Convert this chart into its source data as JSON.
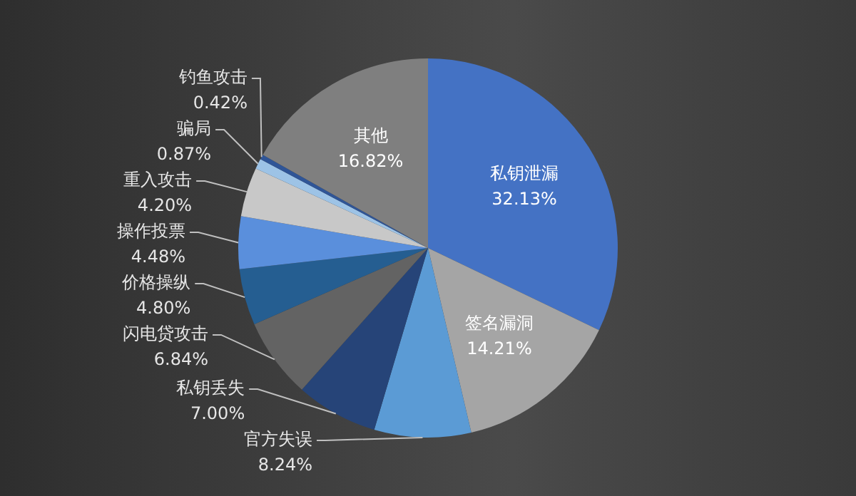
{
  "chart_data": {
    "type": "pie",
    "categories": [
      "私钥泄漏",
      "签名漏洞",
      "官方失误",
      "私钥丢失",
      "闪电贷攻击",
      "价格操纵",
      "操作投票",
      "重入攻击",
      "骗局",
      "钓鱼攻击",
      "其他"
    ],
    "values": [
      32.13,
      14.21,
      8.24,
      7.0,
      6.84,
      4.8,
      4.48,
      4.2,
      0.87,
      0.42,
      16.82
    ],
    "value_labels": [
      "32.13%",
      "14.21%",
      "8.24%",
      "7.00%",
      "6.84%",
      "4.80%",
      "4.48%",
      "4.20%",
      "0.87%",
      "0.42%",
      "16.82%"
    ],
    "colors": [
      "#4472c4",
      "#a5a5a5",
      "#5b9bd5",
      "#264478",
      "#636363",
      "#255e91",
      "#5a8fdc",
      "#c8c8c8",
      "#9dc3e6",
      "#2f5597",
      "#7f7f7f"
    ],
    "legend": false
  }
}
